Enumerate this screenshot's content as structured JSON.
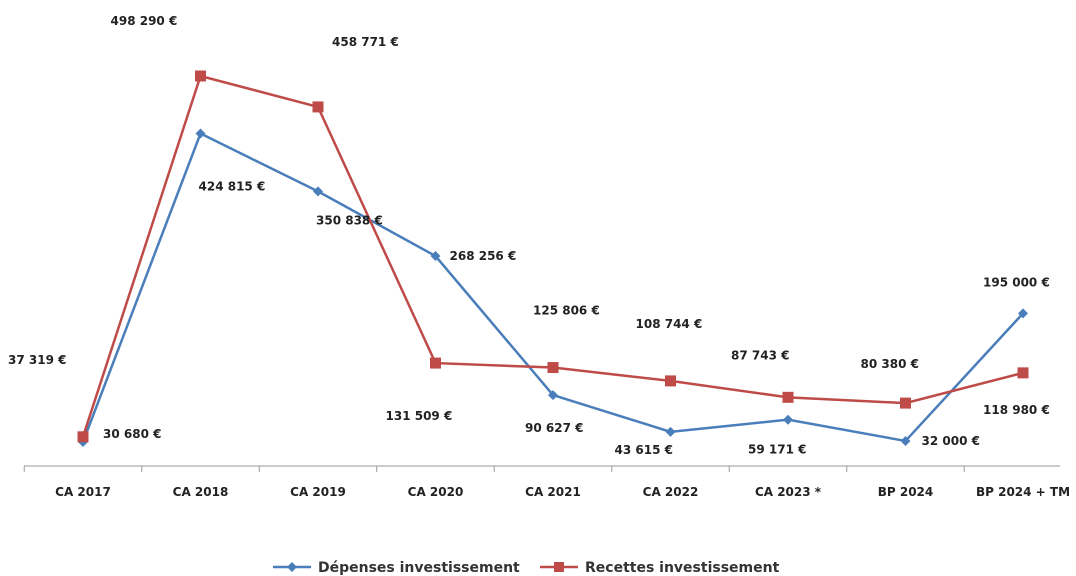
{
  "chart_data": {
    "type": "line",
    "categories": [
      "CA 2017",
      "CA 2018",
      "CA 2019",
      "CA 2020",
      "CA 2021",
      "CA 2022",
      "CA 2023 *",
      "BP 2024",
      "BP 2024 + TM"
    ],
    "series": [
      {
        "name": "Dépenses investissement",
        "color": "#4a7ebb",
        "marker": "diamond",
        "values": [
          30680,
          424815,
          350838,
          268256,
          90627,
          43615,
          59171,
          32000,
          195000
        ],
        "labels": [
          "30 680 €",
          "424 815 €",
          "350 838 €",
          "268 256 €",
          "90 627 €",
          "43 615 €",
          "59 171 €",
          "32 000 €",
          "195 000 €"
        ]
      },
      {
        "name": "Recettes investissement",
        "color": "#be4b48",
        "marker": "square",
        "values": [
          37319,
          498290,
          458771,
          131509,
          125806,
          108744,
          87743,
          80380,
          118980
        ],
        "labels": [
          "37 319 €",
          "498 290 €",
          "458 771 €",
          "131 509 €",
          "125 806 €",
          "108 744 €",
          "87 743 €",
          "80 380 €",
          "118 980 €"
        ]
      }
    ],
    "ylim": [
      0,
      560000
    ],
    "grid": false,
    "legend_position": "bottom"
  }
}
